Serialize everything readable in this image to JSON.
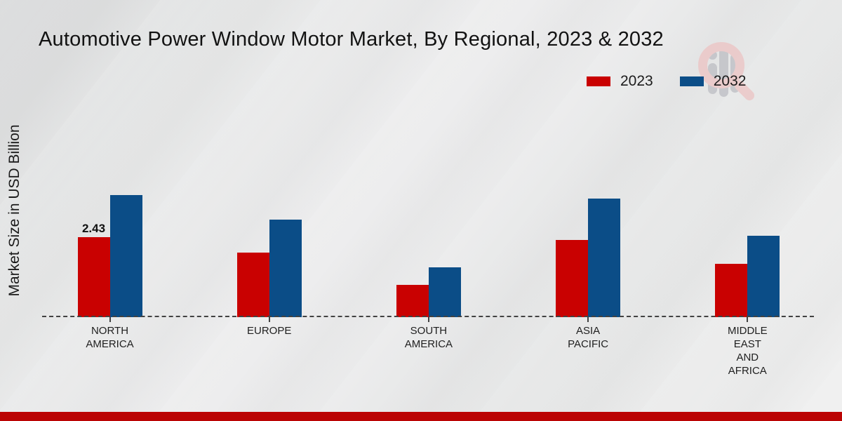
{
  "title": "Automotive Power Window Motor Market, By Regional, 2023 & 2032",
  "y_axis_label": "Market Size in USD Billion",
  "legend": {
    "items": [
      {
        "label": "2023",
        "color": "#c90101"
      },
      {
        "label": "2032",
        "color": "#0b4d87"
      }
    ],
    "position": "top-right"
  },
  "colors": {
    "series_2023": "#c90101",
    "series_2032": "#0b4d87",
    "bottom_strip": "#bb0404",
    "baseline": "#424242",
    "background": "#e9eaea"
  },
  "watermark_icon": "magnifier-bar-chart-logo",
  "chart_data": {
    "type": "bar",
    "title": "Automotive Power Window Motor Market, By Regional, 2023 & 2032",
    "xlabel": "",
    "ylabel": "Market Size in USD Billion",
    "ylim": [
      0,
      4
    ],
    "grid": false,
    "legend_position": "top-right",
    "categories": [
      "NORTH AMERICA",
      "EUROPE",
      "SOUTH AMERICA",
      "ASIA PACIFIC",
      "MIDDLE EAST AND AFRICA"
    ],
    "categories_display": [
      "NORTH\nAMERICA",
      "EUROPE",
      "SOUTH\nAMERICA",
      "ASIA\nPACIFIC",
      "MIDDLE\nEAST\nAND\nAFRICA"
    ],
    "series": [
      {
        "name": "2023",
        "color": "#c90101",
        "values": [
          2.43,
          1.97,
          0.98,
          2.35,
          1.62
        ]
      },
      {
        "name": "2032",
        "color": "#0b4d87",
        "values": [
          3.71,
          2.97,
          1.51,
          3.61,
          2.47
        ]
      }
    ],
    "data_labels": [
      {
        "series": "2023",
        "category": "NORTH AMERICA",
        "text": "2.43"
      }
    ]
  }
}
